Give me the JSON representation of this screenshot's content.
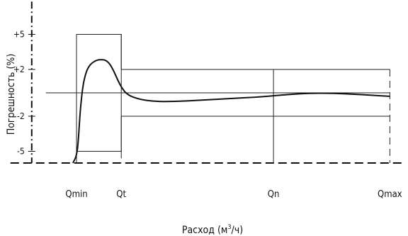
{
  "chart_data": {
    "type": "line",
    "ylabel": "Погрешность (%)",
    "xlabel_main": "Расход (м",
    "xlabel_sup": "3",
    "xlabel_tail": "/ч)",
    "y_ticks": [
      {
        "label": "+5",
        "value": 5
      },
      {
        "label": "+2",
        "value": 2
      },
      {
        "label": "-2",
        "value": -2
      },
      {
        "label": "-5",
        "value": -5
      }
    ],
    "x_ticks": [
      {
        "label": "Qmin",
        "value": 0
      },
      {
        "label": "Qt",
        "value": 1
      },
      {
        "label": "Qn",
        "value": 4.4
      },
      {
        "label": "Qmax",
        "value": 7
      }
    ],
    "ylim": [
      -6,
      7.8
    ],
    "xlim": [
      -1,
      7.3
    ],
    "error_limits": [
      {
        "x": [
          0,
          1
        ],
        "lower": -5,
        "upper": 5
      },
      {
        "x": [
          1,
          7
        ],
        "lower": -2,
        "upper": 2
      }
    ],
    "error_curve": [
      [
        -0.08,
        -6
      ],
      [
        0,
        -5.4
      ],
      [
        0.04,
        -4.2
      ],
      [
        0.08,
        -1.6
      ],
      [
        0.14,
        0.6
      ],
      [
        0.22,
        1.9
      ],
      [
        0.32,
        2.5
      ],
      [
        0.45,
        2.8
      ],
      [
        0.55,
        2.85
      ],
      [
        0.65,
        2.8
      ],
      [
        0.74,
        2.5
      ],
      [
        0.83,
        1.9
      ],
      [
        0.92,
        1.1
      ],
      [
        1.02,
        0.35
      ],
      [
        1.15,
        -0.2
      ],
      [
        1.4,
        -0.55
      ],
      [
        1.7,
        -0.72
      ],
      [
        2.0,
        -0.75
      ],
      [
        2.4,
        -0.7
      ],
      [
        2.9,
        -0.6
      ],
      [
        3.5,
        -0.48
      ],
      [
        4.1,
        -0.35
      ],
      [
        4.6,
        -0.18
      ],
      [
        5.1,
        -0.05
      ],
      [
        5.5,
        -0.02
      ],
      [
        6.0,
        -0.08
      ],
      [
        6.5,
        -0.18
      ],
      [
        7.0,
        -0.3
      ]
    ]
  }
}
